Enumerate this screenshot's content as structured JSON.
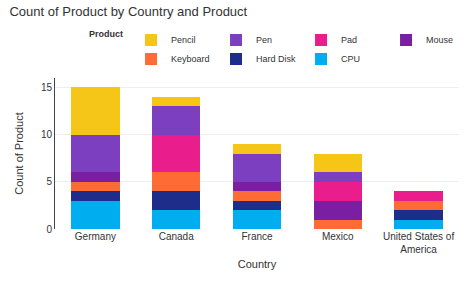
{
  "chart_data": {
    "type": "bar",
    "stacked": true,
    "title": "Count of Product by Country and Product",
    "xlabel": "Country",
    "ylabel": "Count of Product",
    "legend_title": "Product",
    "legend": "upper right",
    "categories": [
      "Germany",
      "Canada",
      "France",
      "Mexico",
      "United States of\nAmerica"
    ],
    "series": [
      {
        "name": "CPU",
        "color": "#00AEEF",
        "values": [
          3,
          2,
          2,
          0,
          1
        ]
      },
      {
        "name": "Hard Disk",
        "color": "#1F2D8A",
        "values": [
          1,
          2,
          1,
          0,
          1
        ]
      },
      {
        "name": "Keyboard",
        "color": "#FF6B35",
        "values": [
          1,
          2,
          1,
          1,
          1
        ]
      },
      {
        "name": "Mouse",
        "color": "#7B1FA2",
        "values": [
          1,
          0,
          1,
          2,
          0
        ]
      },
      {
        "name": "Pad",
        "color": "#E91E8C",
        "values": [
          0,
          4,
          0,
          2,
          1
        ]
      },
      {
        "name": "Pen",
        "color": "#7C3FBF",
        "values": [
          4,
          3,
          3,
          1,
          0
        ]
      },
      {
        "name": "Pencil",
        "color": "#F5C518",
        "values": [
          5,
          1,
          1,
          2,
          0
        ]
      }
    ],
    "ylim": [
      0,
      16
    ],
    "yticks": [
      0,
      5,
      10,
      15
    ],
    "grid": true
  }
}
